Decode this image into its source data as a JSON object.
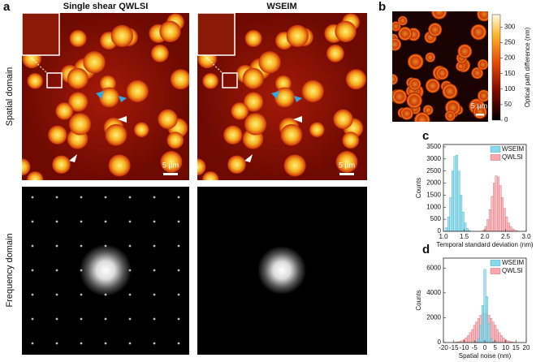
{
  "panel_a": {
    "label": "a",
    "titles": [
      "Single shear QWLSI",
      "WSEIM"
    ],
    "row_labels": [
      "Spatial domain",
      "Frequency domain"
    ],
    "scale_bar": "5 µm"
  },
  "panel_b": {
    "label": "b",
    "scale_bar": "5 µm"
  },
  "chart_data": [
    {
      "type": "colorbar",
      "ylabel": "Optical path difference (nm)",
      "ylim": [
        0,
        340
      ],
      "yticks": [
        0,
        50,
        100,
        150,
        200,
        250,
        300
      ]
    },
    {
      "type": "histogram",
      "panel": "c",
      "xlabel": "Temporal standard deviation (nm)",
      "ylabel": "Counts",
      "xlim": [
        1,
        3
      ],
      "xticks": [
        {
          "value": 1,
          "label": "1.0"
        },
        1.5,
        {
          "value": 2,
          "label": "2.0"
        },
        2.5,
        {
          "value": 3,
          "label": "3.0"
        }
      ],
      "ylim": [
        0,
        3600
      ],
      "yticks": [
        0,
        500,
        1000,
        1500,
        2000,
        2500,
        3000,
        3500
      ],
      "bins": [
        1,
        1.05,
        1.1,
        1.15,
        1.2,
        1.25,
        1.3,
        1.35,
        1.4,
        1.45,
        1.5,
        1.55,
        1.6,
        1.65,
        1.7,
        1.75,
        1.8,
        1.85,
        1.9,
        1.95,
        2,
        2.05,
        2.1,
        2.15,
        2.2,
        2.25,
        2.3,
        2.35,
        2.4,
        2.45,
        2.5,
        2.55,
        2.6,
        2.65,
        2.7,
        2.75,
        2.8,
        2.85,
        2.9,
        2.95,
        3
      ],
      "series": [
        {
          "name": "WSEIM",
          "color": "#86d9ea",
          "values": [
            0,
            150,
            600,
            1400,
            2500,
            3100,
            3150,
            2500,
            1500,
            800,
            350,
            120,
            40,
            0,
            0,
            0,
            0,
            0,
            0,
            0,
            0,
            0,
            0,
            0,
            0,
            0,
            0,
            0,
            0,
            0,
            0,
            0,
            0,
            0,
            0,
            0,
            0,
            0,
            0,
            0
          ]
        },
        {
          "name": "QWLSI",
          "color": "#f5a8ad",
          "values": [
            0,
            0,
            0,
            0,
            0,
            0,
            0,
            0,
            0,
            0,
            0,
            0,
            0,
            0,
            0,
            0,
            0,
            0,
            0,
            50,
            200,
            500,
            900,
            1450,
            2000,
            2300,
            2250,
            1900,
            1400,
            950,
            600,
            350,
            200,
            100,
            50,
            20,
            0,
            0,
            0,
            0
          ]
        }
      ]
    },
    {
      "type": "histogram",
      "panel": "d",
      "xlabel": "Spatial noise (nm)",
      "ylabel": "Counts",
      "xlim": [
        -20,
        20
      ],
      "xticks": [
        -20,
        -15,
        -10,
        -5,
        0,
        5,
        10,
        15,
        20
      ],
      "ylim": [
        0,
        6800
      ],
      "yticks": [
        0,
        2000,
        4000,
        6000
      ],
      "bins": [
        -19.5,
        -18.5,
        -17.5,
        -16.5,
        -15.5,
        -14.5,
        -13.5,
        -12.5,
        -11.5,
        -10.5,
        -9.5,
        -8.5,
        -7.5,
        -6.5,
        -5.5,
        -4.5,
        -3.5,
        -2.5,
        -1.5,
        -0.5,
        0.5,
        1.5,
        2.5,
        3.5,
        4.5,
        5.5,
        6.5,
        7.5,
        8.5,
        9.5,
        10.5,
        11.5,
        12.5,
        13.5,
        14.5,
        15.5,
        16.5,
        17.5,
        18.5,
        19.5
      ],
      "series": [
        {
          "name": "WSEIM",
          "color": "#86d9ea",
          "values": [
            0,
            0,
            0,
            0,
            0,
            0,
            0,
            0,
            0,
            0,
            0,
            0,
            0,
            0,
            0,
            50,
            300,
            1400,
            3000,
            5900,
            3700,
            1500,
            300,
            50,
            0,
            0,
            0,
            0,
            0,
            0,
            0,
            0,
            0,
            0,
            0,
            0,
            0,
            0,
            0
          ]
        },
        {
          "name": "QWLSI",
          "color": "#f5a8ad",
          "values": [
            0,
            0,
            0,
            0,
            12,
            25,
            50,
            90,
            150,
            250,
            380,
            560,
            800,
            1050,
            1400,
            1650,
            1950,
            2200,
            2350,
            2400,
            2350,
            2200,
            1950,
            1650,
            1400,
            1050,
            800,
            560,
            380,
            250,
            150,
            90,
            50,
            25,
            12,
            0,
            0,
            0,
            0
          ]
        }
      ]
    }
  ]
}
